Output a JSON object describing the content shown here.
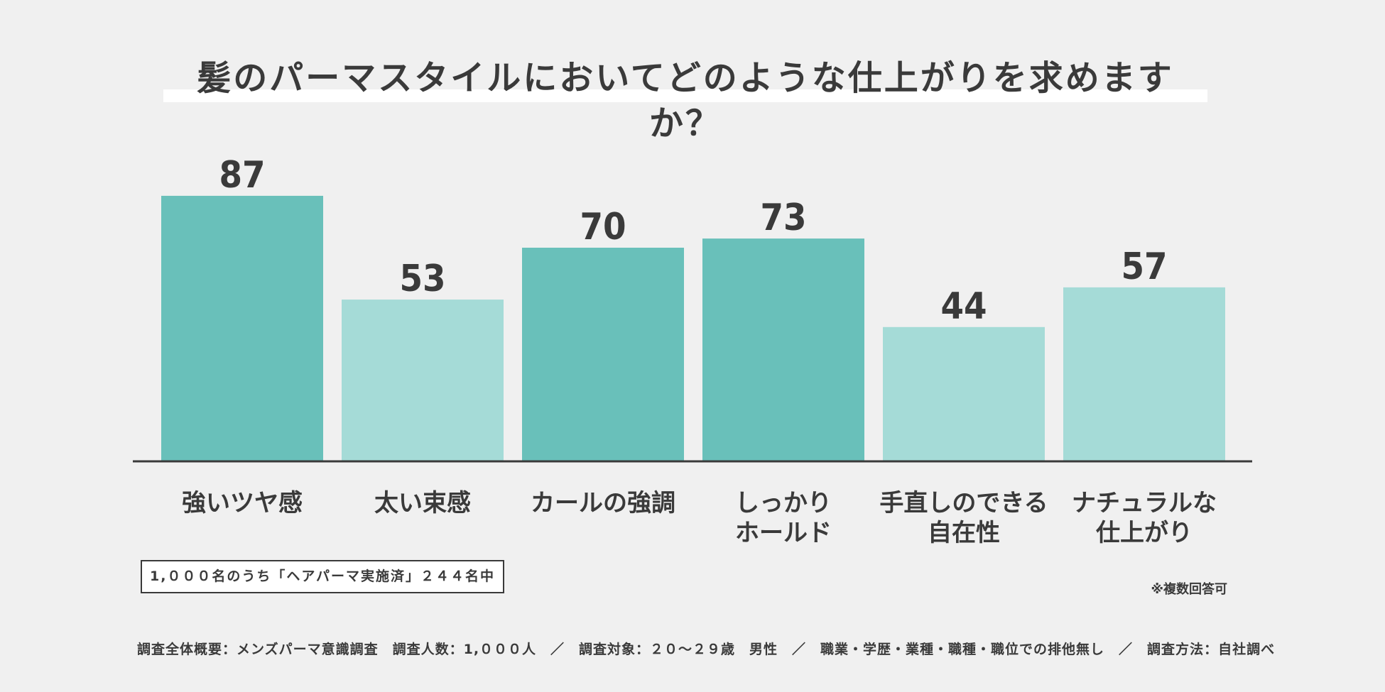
{
  "title": "髪のパーマスタイルにおいてどのような仕上がりを求めますか？",
  "chart_data": {
    "type": "bar",
    "title": "髪のパーマスタイルにおいてどのような仕上がりを求めますか？",
    "categories": [
      [
        "強いツヤ感"
      ],
      [
        "太い束感"
      ],
      [
        "カールの強調"
      ],
      [
        "しっかり",
        "ホールド"
      ],
      [
        "手直しのできる",
        "自在性"
      ],
      [
        "ナチュラルな",
        "仕上がり"
      ]
    ],
    "values": [
      87,
      53,
      70,
      73,
      44,
      57
    ],
    "ylim": [
      0,
      100
    ],
    "grid": false,
    "legend": "none",
    "colors": {
      "dark_bar": "#69c0ba",
      "light_bar": "#a5dbd7",
      "baseline": "#3a3a3a",
      "text": "#3a3a3a"
    },
    "bar_shades": [
      "dark",
      "light",
      "dark",
      "dark",
      "light",
      "light"
    ]
  },
  "note_box": "1,０００名のうち「ヘアパーマ実施済」２４４名中",
  "multi_answer_note": "※複数回答可",
  "footer": "調査全体概要：メンズパーマ意識調査　調査人数：1,０００人　／　調査対象：２０〜２９歳　男性　／　職業・学歴・業種・職種・職位での排他無し　／　調査方法：自社調べ"
}
